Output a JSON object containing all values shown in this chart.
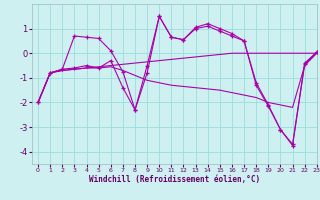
{
  "xlabel": "Windchill (Refroidissement éolien,°C)",
  "ylabel": "",
  "xlim": [
    -0.5,
    23
  ],
  "ylim": [
    -4.5,
    2.0
  ],
  "xticks": [
    0,
    1,
    2,
    3,
    4,
    5,
    6,
    7,
    8,
    9,
    10,
    11,
    12,
    13,
    14,
    15,
    16,
    17,
    18,
    19,
    20,
    21,
    22,
    23
  ],
  "yticks": [
    -4,
    -3,
    -2,
    -1,
    0,
    1
  ],
  "background_color": "#cef0f0",
  "line_color": "#aa00aa",
  "grid_color": "#99dddd",
  "curve1": {
    "x": [
      0,
      1,
      2,
      3,
      4,
      5,
      6,
      7,
      8,
      9,
      10,
      11,
      12,
      13,
      14,
      15,
      16,
      17,
      18,
      19,
      20,
      21,
      22,
      23
    ],
    "y": [
      -2.0,
      -0.8,
      -0.7,
      -0.65,
      -0.6,
      -0.55,
      -0.5,
      -0.45,
      -0.4,
      -0.35,
      -0.3,
      -0.25,
      -0.2,
      -0.15,
      -0.1,
      -0.05,
      0.0,
      0.0,
      0.0,
      0.0,
      0.0,
      0.0,
      0.0,
      0.0
    ],
    "has_markers": false
  },
  "curve2": {
    "x": [
      0,
      1,
      2,
      3,
      4,
      5,
      6,
      7,
      8,
      9,
      10,
      11,
      12,
      13,
      14,
      15,
      16,
      17,
      18,
      19,
      20,
      21,
      22,
      23
    ],
    "y": [
      -2.0,
      -0.8,
      -0.7,
      -0.65,
      -0.6,
      -0.6,
      -0.55,
      -0.7,
      -0.9,
      -1.1,
      -1.2,
      -1.3,
      -1.35,
      -1.4,
      -1.45,
      -1.5,
      -1.6,
      -1.7,
      -1.8,
      -2.0,
      -2.1,
      -2.2,
      -0.5,
      0.0
    ],
    "has_markers": false
  },
  "curve3": {
    "x": [
      0,
      1,
      2,
      3,
      4,
      5,
      6,
      7,
      8,
      9,
      10,
      11,
      12,
      13,
      14,
      15,
      16,
      17,
      18,
      19,
      20,
      21,
      22,
      23
    ],
    "y": [
      -2.0,
      -0.8,
      -0.65,
      0.7,
      0.65,
      0.6,
      0.1,
      -0.75,
      -2.3,
      -0.5,
      1.5,
      0.65,
      0.55,
      1.05,
      1.2,
      1.0,
      0.8,
      0.5,
      -1.2,
      -2.1,
      -3.1,
      -3.7,
      -0.4,
      0.05
    ],
    "has_markers": true
  },
  "curve4": {
    "x": [
      0,
      1,
      2,
      3,
      4,
      5,
      6,
      7,
      8,
      9,
      10,
      11,
      12,
      13,
      14,
      15,
      16,
      17,
      18,
      19,
      20,
      21,
      22,
      23
    ],
    "y": [
      -2.0,
      -0.8,
      -0.65,
      -0.6,
      -0.5,
      -0.6,
      -0.3,
      -1.4,
      -2.3,
      -0.8,
      1.5,
      0.65,
      0.55,
      1.0,
      1.1,
      0.9,
      0.7,
      0.5,
      -1.3,
      -2.15,
      -3.1,
      -3.75,
      -0.45,
      0.05
    ],
    "has_markers": true
  }
}
